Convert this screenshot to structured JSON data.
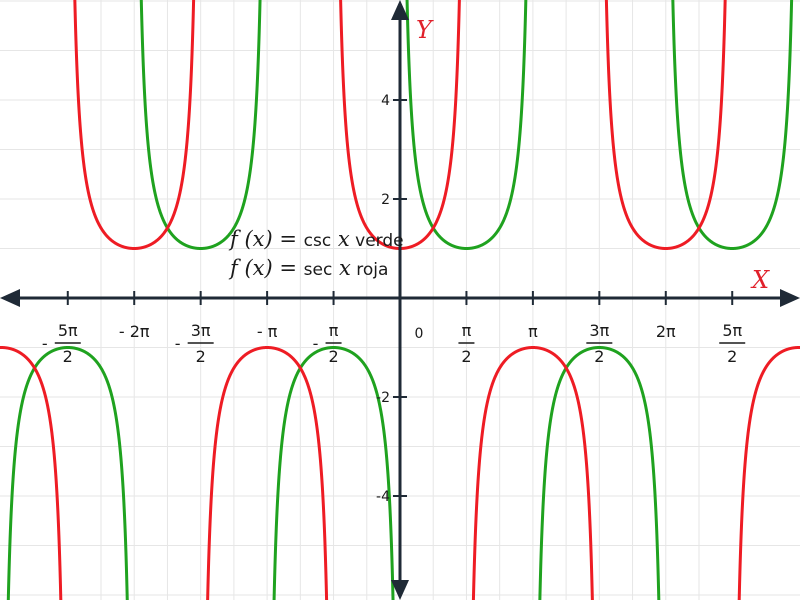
{
  "chart_data": {
    "type": "line",
    "x_label": "X",
    "y_label": "Y",
    "xlim": [
      -9.42,
      9.42
    ],
    "ylim": [
      -6,
      6
    ],
    "grid": true,
    "colors": {
      "axis": "#1f2a36",
      "grid": "#e6e6e6",
      "series_a": "#1fa21f",
      "series_b": "#ee1c24",
      "axis_label": "#e0202a"
    },
    "y_ticks": [
      {
        "value": -4,
        "label": "-4"
      },
      {
        "value": -2,
        "label": "-2"
      },
      {
        "value": 2,
        "label": "2"
      },
      {
        "value": 4,
        "label": "4"
      }
    ],
    "origin_label": "0",
    "x_ticks": [
      {
        "value": -7.853982,
        "sign": "-",
        "num": "5π",
        "den": "2"
      },
      {
        "value": -6.283185,
        "text": "- 2π"
      },
      {
        "value": -4.712389,
        "sign": "-",
        "num": "3π",
        "den": "2"
      },
      {
        "value": -3.141593,
        "text": "- π"
      },
      {
        "value": -1.570796,
        "sign": "-",
        "num": "π",
        "den": "2"
      },
      {
        "value": 1.570796,
        "num": "π",
        "den": "2"
      },
      {
        "value": 3.141593,
        "text": "π"
      },
      {
        "value": 4.712389,
        "num": "3π",
        "den": "2"
      },
      {
        "value": 6.283185,
        "text": "2π"
      },
      {
        "value": 7.853982,
        "num": "5π",
        "den": "2"
      }
    ],
    "series": [
      {
        "function": "csc",
        "color": "#1fa21f"
      },
      {
        "function": "sec",
        "color": "#ee1c24"
      }
    ],
    "legend": [
      {
        "prefix": "f (x)",
        "eq": " = ",
        "fn": "csc",
        "var": " x",
        "desc": " verde"
      },
      {
        "prefix": "f (x)",
        "eq": " = ",
        "fn": "sec",
        "var": " x",
        "desc": " roja"
      }
    ]
  }
}
